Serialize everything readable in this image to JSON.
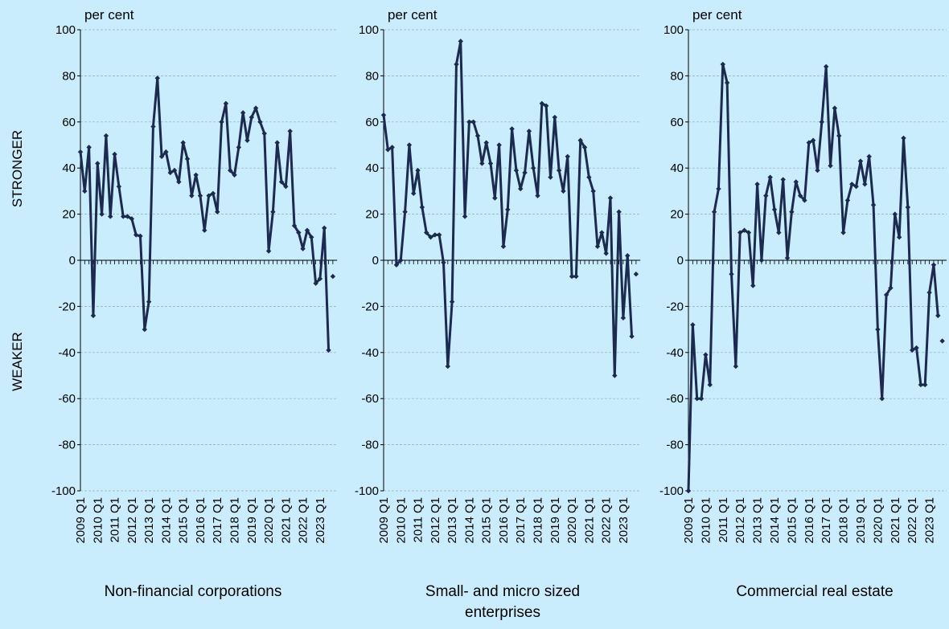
{
  "annotations": [
    "STRONGER",
    "WEAKER"
  ],
  "chart_data": [
    {
      "type": "line",
      "title": "Non-financial corporations",
      "y_unit": "per cent",
      "categories": [
        "2009 Q1",
        null,
        null,
        null,
        "2010 Q1",
        null,
        null,
        null,
        "2011 Q1",
        null,
        null,
        null,
        "2012 Q1",
        null,
        null,
        null,
        "2013 Q1",
        null,
        null,
        null,
        "2014 Q1",
        null,
        null,
        null,
        "2015 Q1",
        null,
        null,
        null,
        "2016 Q1",
        null,
        null,
        null,
        "2017 Q1",
        null,
        null,
        null,
        "2018 Q1",
        null,
        null,
        null,
        "2019 Q1",
        null,
        null,
        null,
        "2020 Q1",
        null,
        null,
        null,
        "2021 Q1",
        null,
        null,
        null,
        "2022 Q1",
        null,
        null,
        null,
        "2023 Q1",
        null,
        null,
        null
      ],
      "series": [
        {
          "color": "#1b2a4e",
          "values": [
            47,
            30,
            49,
            -24,
            42,
            20,
            54,
            19,
            46,
            32,
            19,
            19,
            18,
            11,
            10.5,
            -30,
            -18,
            58,
            79,
            45,
            47,
            38,
            39,
            34,
            51,
            44,
            28,
            37,
            28,
            13,
            28,
            29,
            21,
            60,
            68,
            39,
            37,
            49,
            64,
            52,
            62,
            66,
            60,
            55,
            4,
            21,
            51,
            34,
            32,
            56,
            15,
            12,
            5,
            13,
            10,
            -10,
            -8,
            14,
            -39,
            null
          ]
        },
        {
          "color": "#1b2a4e",
          "values": [
            null,
            null,
            null,
            null,
            null,
            null,
            null,
            null,
            null,
            null,
            null,
            null,
            null,
            null,
            null,
            null,
            null,
            null,
            null,
            null,
            null,
            null,
            null,
            null,
            null,
            null,
            null,
            null,
            null,
            null,
            null,
            null,
            null,
            null,
            null,
            null,
            null,
            null,
            null,
            null,
            null,
            null,
            null,
            null,
            null,
            null,
            null,
            null,
            null,
            null,
            null,
            null,
            null,
            null,
            null,
            null,
            null,
            null,
            null,
            -7
          ]
        }
      ],
      "ylim": [
        -100,
        100
      ],
      "yticks": [
        -100,
        -80,
        -60,
        -40,
        -20,
        0,
        20,
        40,
        60,
        80,
        100
      ],
      "grid": true
    },
    {
      "type": "line",
      "title": "Small- and micro sized enterprises",
      "y_unit": "per cent",
      "categories": [
        "2009 Q1",
        null,
        null,
        null,
        "2010 Q1",
        null,
        null,
        null,
        "2011 Q1",
        null,
        null,
        null,
        "2012 Q1",
        null,
        null,
        null,
        "2013 Q1",
        null,
        null,
        null,
        "2014 Q1",
        null,
        null,
        null,
        "2015 Q1",
        null,
        null,
        null,
        "2016 Q1",
        null,
        null,
        null,
        "2017 Q1",
        null,
        null,
        null,
        "2018 Q1",
        null,
        null,
        null,
        "2019 Q1",
        null,
        null,
        null,
        "2020 Q1",
        null,
        null,
        null,
        "2021 Q1",
        null,
        null,
        null,
        "2022 Q1",
        null,
        null,
        null,
        "2023 Q1",
        null,
        null,
        null
      ],
      "series": [
        {
          "color": "#1b2a4e",
          "values": [
            63,
            48,
            49,
            -2,
            0,
            21,
            50,
            29,
            39,
            23,
            12,
            10,
            11,
            11,
            -1,
            -46,
            -18,
            85,
            95,
            19,
            60,
            60,
            54,
            42,
            51,
            42,
            27,
            50,
            6,
            22,
            57,
            39,
            31,
            38,
            56,
            40,
            28,
            68,
            67,
            36,
            62,
            39,
            30,
            45,
            -7,
            -7,
            52,
            49,
            36,
            30,
            6,
            12,
            3,
            27,
            -50,
            21,
            -25,
            2,
            -33,
            null
          ]
        },
        {
          "color": "#1b2a4e",
          "values": [
            null,
            null,
            null,
            null,
            null,
            null,
            null,
            null,
            null,
            null,
            null,
            null,
            null,
            null,
            null,
            null,
            null,
            null,
            null,
            null,
            null,
            null,
            null,
            null,
            null,
            null,
            null,
            null,
            null,
            null,
            null,
            null,
            null,
            null,
            null,
            null,
            null,
            null,
            null,
            null,
            null,
            null,
            null,
            null,
            null,
            null,
            null,
            null,
            null,
            null,
            null,
            null,
            null,
            null,
            null,
            null,
            null,
            null,
            null,
            -6
          ]
        }
      ],
      "ylim": [
        -100,
        100
      ],
      "yticks": [
        -100,
        -80,
        -60,
        -40,
        -20,
        0,
        20,
        40,
        60,
        80,
        100
      ],
      "grid": true
    },
    {
      "type": "line",
      "title": "Commercial real estate",
      "y_unit": "per cent",
      "categories": [
        "2009 Q1",
        null,
        null,
        null,
        "2010 Q1",
        null,
        null,
        null,
        "2011 Q1",
        null,
        null,
        null,
        "2012 Q1",
        null,
        null,
        null,
        "2013 Q1",
        null,
        null,
        null,
        "2014 Q1",
        null,
        null,
        null,
        "2015 Q1",
        null,
        null,
        null,
        "2016 Q1",
        null,
        null,
        null,
        "2017 Q1",
        null,
        null,
        null,
        "2018 Q1",
        null,
        null,
        null,
        "2019 Q1",
        null,
        null,
        null,
        "2020 Q1",
        null,
        null,
        null,
        "2021 Q1",
        null,
        null,
        null,
        "2022 Q1",
        null,
        null,
        null,
        "2023 Q1",
        null,
        null,
        null
      ],
      "series": [
        {
          "color": "#1b2a4e",
          "values": [
            -100,
            -28,
            -60,
            -60,
            -41,
            -54,
            21,
            31,
            85,
            77,
            -6,
            -46,
            12,
            13,
            12,
            -11,
            33,
            0,
            28,
            36,
            22,
            12,
            35,
            1,
            21,
            34,
            28,
            26,
            51,
            52,
            39,
            60,
            84,
            41,
            66,
            54,
            12,
            26,
            33,
            32,
            43,
            33,
            45,
            24,
            -30,
            -60,
            -15,
            -12,
            20,
            10,
            53,
            23,
            -39,
            -38,
            -54,
            -54,
            -14,
            -2,
            -24,
            null
          ]
        },
        {
          "color": "#1b2a4e",
          "values": [
            null,
            null,
            null,
            null,
            null,
            null,
            null,
            null,
            null,
            null,
            null,
            null,
            null,
            null,
            null,
            null,
            null,
            null,
            null,
            null,
            null,
            null,
            null,
            null,
            null,
            null,
            null,
            null,
            null,
            null,
            null,
            null,
            null,
            null,
            null,
            null,
            null,
            null,
            null,
            null,
            null,
            null,
            null,
            null,
            null,
            null,
            null,
            null,
            null,
            null,
            null,
            null,
            null,
            null,
            null,
            null,
            null,
            null,
            null,
            -35
          ]
        }
      ],
      "ylim": [
        -100,
        100
      ],
      "yticks": [
        -100,
        -80,
        -60,
        -40,
        -20,
        0,
        20,
        40,
        60,
        80,
        100
      ],
      "grid": true
    }
  ]
}
